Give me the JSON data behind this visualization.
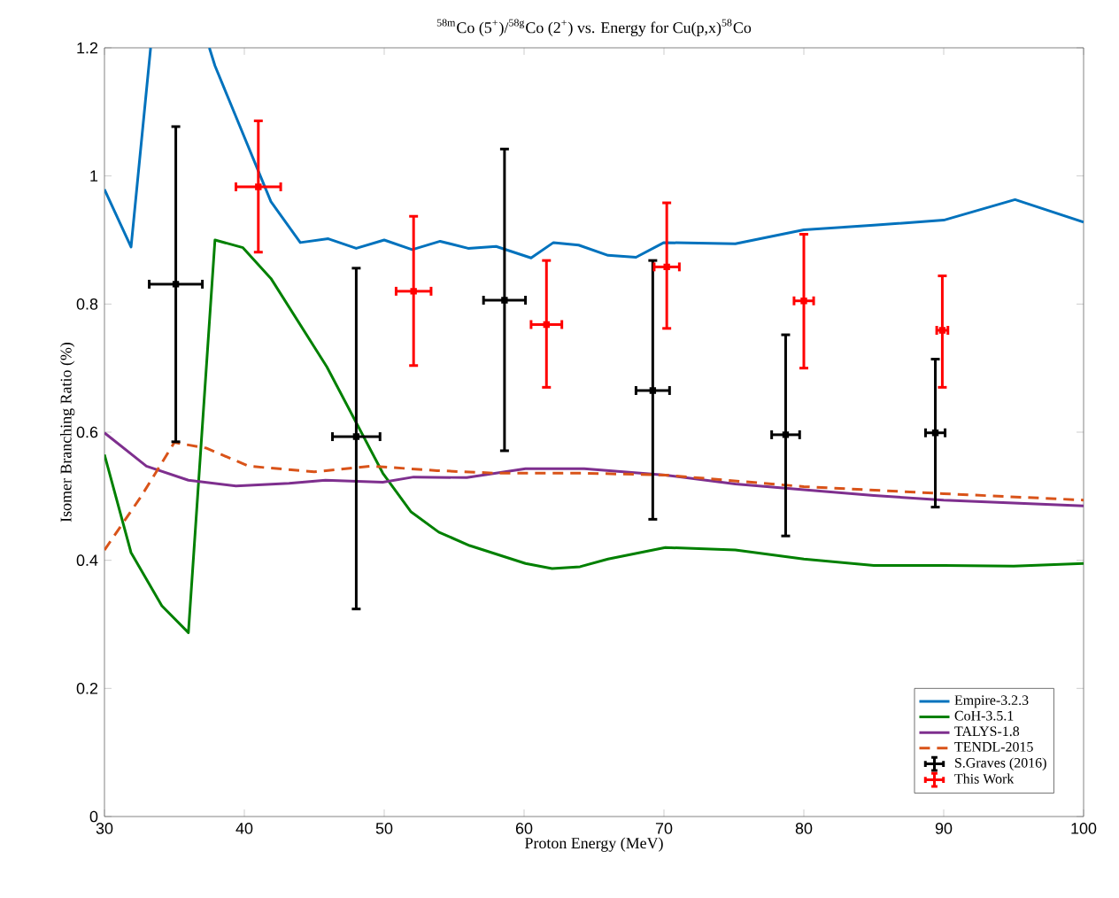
{
  "chart_data": {
    "type": "line",
    "title": "$^{58m}$Co (5$^{+}$)/$^{58g}$Co (2$^{+}$) vs. Energy for Cu(p,x)$^{58}$Co",
    "xlabel": "Proton Energy (MeV)",
    "ylabel": "Isomer Branching Ratio (%)",
    "xlim": [
      30,
      100
    ],
    "xticks": [
      30,
      40,
      50,
      60,
      70,
      80,
      90,
      100
    ],
    "ylim": [
      0,
      1.2
    ],
    "yticks": [
      0,
      0.2,
      0.4,
      0.6,
      0.8,
      1,
      1.2
    ],
    "grid": false,
    "legend": "bottom right",
    "marker": "none",
    "series": [
      {
        "name": "Empire-3.2.3",
        "color": "#0072bd",
        "x": [
          30,
          31.9,
          33.3,
          35.5,
          37.5,
          37.9,
          41.9,
          44,
          46,
          48,
          50,
          52,
          54,
          56,
          58,
          60.5,
          62.1,
          63.9,
          66,
          68,
          70,
          75.1,
          80,
          85,
          90,
          95.1,
          100
        ],
        "values": [
          0.979,
          0.889,
          1.2,
          null,
          1.2,
          1.172,
          0.96,
          0.896,
          0.902,
          0.887,
          0.9,
          0.885,
          0.898,
          0.887,
          0.89,
          0.872,
          0.896,
          0.892,
          0.876,
          0.873,
          0.896,
          0.894,
          0.916,
          0.923,
          0.931,
          0.963,
          0.928
        ]
      },
      {
        "name": "CoH-3.5.1",
        "color": "#008000",
        "x": [
          30,
          31.9,
          34.1,
          36,
          37.9,
          39.9,
          41.9,
          45.9,
          49.9,
          51.9,
          53.9,
          56.1,
          60.1,
          62,
          64,
          66,
          70.1,
          75.1,
          80,
          85,
          90,
          95,
          100
        ],
        "values": [
          0.565,
          0.412,
          0.329,
          0.287,
          0.9,
          0.888,
          0.84,
          0.702,
          0.536,
          0.476,
          0.444,
          0.423,
          0.395,
          0.387,
          0.39,
          0.402,
          0.42,
          0.416,
          0.402,
          0.392,
          0.392,
          0.391,
          0.395
        ]
      },
      {
        "name": "TALYS-1.8",
        "color": "#7e2f8e",
        "x": [
          30,
          33,
          36,
          39.4,
          43.2,
          45.8,
          49.9,
          52.1,
          55.9,
          60.1,
          64.3,
          70.1,
          75.1,
          80,
          85,
          90,
          100
        ],
        "values": [
          0.599,
          0.547,
          0.525,
          0.516,
          0.52,
          0.525,
          0.522,
          0.53,
          0.529,
          0.543,
          0.543,
          0.533,
          0.519,
          0.51,
          0.501,
          0.494,
          0.485
        ]
      },
      {
        "name": "TENDL-2015",
        "color": "#d95319",
        "line_style": "dashed",
        "x": [
          30,
          32.6,
          35,
          37.3,
          40.3,
          45,
          49.1,
          53.8,
          58,
          64.3,
          70.1,
          80,
          90,
          100
        ],
        "values": [
          0.416,
          0.499,
          0.584,
          0.575,
          0.547,
          0.538,
          0.547,
          0.54,
          0.536,
          0.536,
          0.533,
          0.515,
          0.504,
          0.494
        ]
      },
      {
        "name": "S.Graves (2016)",
        "color": "#000000",
        "type": "scatter",
        "marker": "square",
        "x": [
          35.1,
          48,
          58.6,
          69.2,
          78.7,
          89.4
        ],
        "values": [
          0.831,
          0.593,
          0.806,
          0.665,
          0.596,
          0.599
        ],
        "errors": [
          [
            0.585,
            1.077
          ],
          [
            0.324,
            0.856
          ],
          [
            0.571,
            1.042
          ],
          [
            0.464,
            0.868
          ],
          [
            0.438,
            0.752
          ],
          [
            0.483,
            0.714
          ]
        ],
        "xerrors": [
          1.9,
          1.7,
          1.5,
          1.2,
          1.0,
          0.7
        ]
      },
      {
        "name": "This Work",
        "color": "#ff0000",
        "type": "scatter",
        "marker": "square",
        "x": [
          41,
          52.1,
          61.6,
          70.2,
          80,
          89.9
        ],
        "values": [
          0.983,
          0.82,
          0.768,
          0.858,
          0.805,
          0.759
        ],
        "errors": [
          [
            0.881,
            1.086
          ],
          [
            0.704,
            0.937
          ],
          [
            0.67,
            0.868
          ],
          [
            0.762,
            0.958
          ],
          [
            0.7,
            0.909
          ],
          [
            0.67,
            0.844
          ]
        ],
        "xerrors": [
          1.6,
          1.25,
          1.1,
          0.9,
          0.7,
          0.4
        ]
      }
    ]
  }
}
